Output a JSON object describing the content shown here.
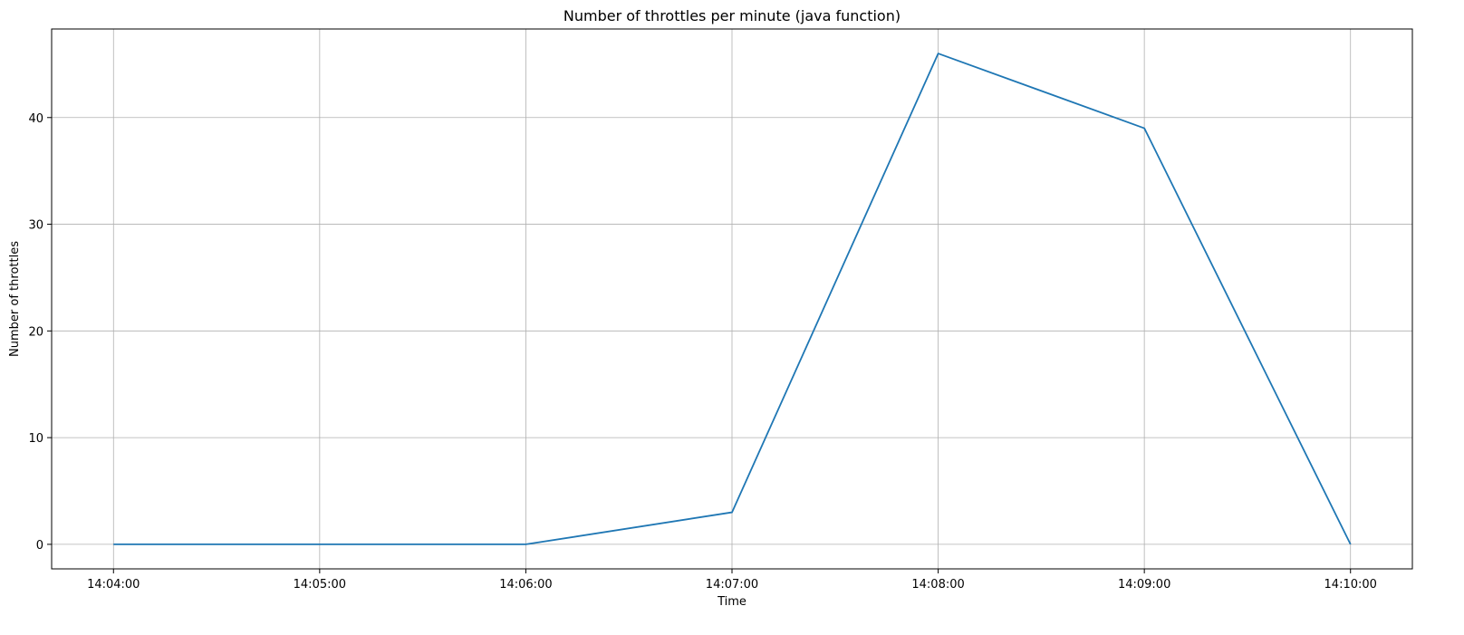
{
  "chart_data": {
    "type": "line",
    "title": "Number of throttles per minute (java function)",
    "xlabel": "Time",
    "ylabel": "Number of throttles",
    "x": [
      "14:04:00",
      "14:05:00",
      "14:06:00",
      "14:07:00",
      "14:08:00",
      "14:09:00",
      "14:10:00"
    ],
    "xlim": [
      "14:03:42",
      "14:10:18"
    ],
    "series": [
      {
        "x": [
          "14:04:00",
          "14:05:00",
          "14:06:00",
          "14:07:00",
          "14:08:00",
          "14:09:00",
          "14:10:00"
        ],
        "values": [
          0,
          0,
          0,
          3,
          46,
          39,
          0
        ],
        "color": "#1f77b4"
      }
    ],
    "yticks": [
      0,
      10,
      20,
      30,
      40
    ],
    "ylim": [
      -2.3,
      48.3
    ],
    "grid": true
  }
}
